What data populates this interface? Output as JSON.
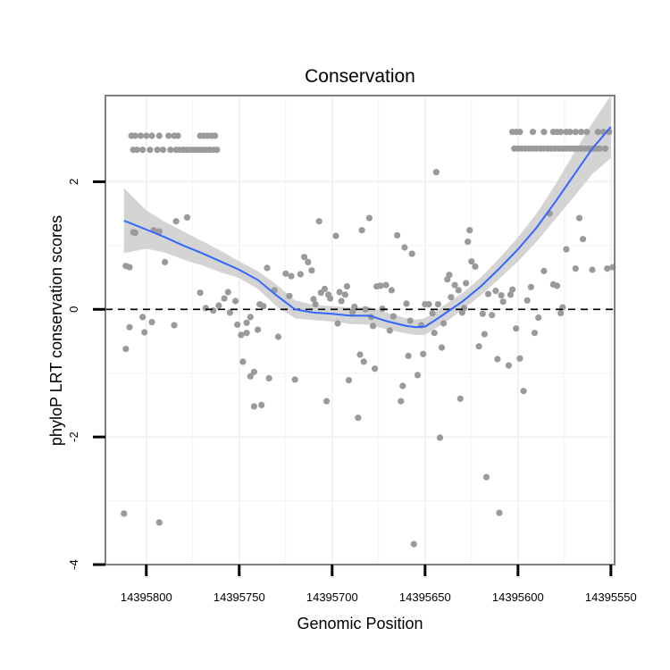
{
  "chart_data": {
    "type": "scatter",
    "title": "Conservation",
    "xlabel": "Genomic Position",
    "ylabel": "phyloP LRT conservation scores",
    "x_reversed": true,
    "xlim": [
      14395822,
      14395548
    ],
    "ylim": [
      -4.0,
      3.35
    ],
    "x_ticks": [
      14395800,
      14395750,
      14395700,
      14395650,
      14395600,
      14395550
    ],
    "x_tick_labels": [
      "14395800",
      "14395750",
      "14395700",
      "14395650",
      "14395600",
      "14395550"
    ],
    "y_ticks": [
      -4,
      -2,
      0,
      2
    ],
    "y_tick_labels": [
      "-4",
      "-2",
      "0",
      "2"
    ],
    "reference_line": {
      "y": 0,
      "style": "dashed"
    },
    "grid": true,
    "colors": {
      "points": "#9a9a9a",
      "smooth": "#3366ff",
      "ribbon": "#cccccc",
      "panel_border": "#808080",
      "grid": "#f2f2f2"
    },
    "points": [
      [
        14395808,
        2.72
      ],
      [
        14395806,
        2.72
      ],
      [
        14395803,
        2.72
      ],
      [
        14395800,
        2.72
      ],
      [
        14395797,
        2.72
      ],
      [
        14395793,
        2.72
      ],
      [
        14395788,
        2.72
      ],
      [
        14395785,
        2.72
      ],
      [
        14395783,
        2.72
      ],
      [
        14395771,
        2.72
      ],
      [
        14395769,
        2.72
      ],
      [
        14395767,
        2.72
      ],
      [
        14395765,
        2.72
      ],
      [
        14395763,
        2.72
      ],
      [
        14395807,
        2.5
      ],
      [
        14395805,
        2.5
      ],
      [
        14395802,
        2.5
      ],
      [
        14395798,
        2.5
      ],
      [
        14395794,
        2.5
      ],
      [
        14395791,
        2.5
      ],
      [
        14395787,
        2.5
      ],
      [
        14395784,
        2.5
      ],
      [
        14395782,
        2.5
      ],
      [
        14395780,
        2.5
      ],
      [
        14395778,
        2.5
      ],
      [
        14395776,
        2.5
      ],
      [
        14395774,
        2.5
      ],
      [
        14395772,
        2.5
      ],
      [
        14395770,
        2.5
      ],
      [
        14395768,
        2.5
      ],
      [
        14395766,
        2.5
      ],
      [
        14395764,
        2.5
      ],
      [
        14395762,
        2.5
      ],
      [
        14395603,
        2.78
      ],
      [
        14395601,
        2.78
      ],
      [
        14395599,
        2.78
      ],
      [
        14395592,
        2.78
      ],
      [
        14395586,
        2.78
      ],
      [
        14395581,
        2.78
      ],
      [
        14395579,
        2.78
      ],
      [
        14395577,
        2.78
      ],
      [
        14395574,
        2.78
      ],
      [
        14395572,
        2.78
      ],
      [
        14395569,
        2.78
      ],
      [
        14395566,
        2.78
      ],
      [
        14395563,
        2.78
      ],
      [
        14395557,
        2.78
      ],
      [
        14395554,
        2.78
      ],
      [
        14395551,
        2.78
      ],
      [
        14395602,
        2.52
      ],
      [
        14395600,
        2.52
      ],
      [
        14395598,
        2.52
      ],
      [
        14395596,
        2.52
      ],
      [
        14395594,
        2.52
      ],
      [
        14395592,
        2.52
      ],
      [
        14395590,
        2.52
      ],
      [
        14395588,
        2.52
      ],
      [
        14395586,
        2.52
      ],
      [
        14395584,
        2.52
      ],
      [
        14395582,
        2.52
      ],
      [
        14395580,
        2.52
      ],
      [
        14395578,
        2.52
      ],
      [
        14395576,
        2.52
      ],
      [
        14395574,
        2.52
      ],
      [
        14395572,
        2.52
      ],
      [
        14395570,
        2.52
      ],
      [
        14395568,
        2.52
      ],
      [
        14395566,
        2.52
      ],
      [
        14395564,
        2.52
      ],
      [
        14395562,
        2.52
      ],
      [
        14395560,
        2.52
      ],
      [
        14395558,
        2.52
      ],
      [
        14395556,
        2.52
      ],
      [
        14395553,
        2.52
      ],
      [
        14395811,
        0.68
      ],
      [
        14395809,
        0.66
      ],
      [
        14395807,
        1.21
      ],
      [
        14395806,
        1.2
      ],
      [
        14395802,
        -0.12
      ],
      [
        14395801,
        -0.36
      ],
      [
        14395797,
        -0.2
      ],
      [
        14395796,
        1.24
      ],
      [
        14395793,
        1.22
      ],
      [
        14395790,
        0.74
      ],
      [
        14395785,
        -0.25
      ],
      [
        14395784,
        1.38
      ],
      [
        14395778,
        1.44
      ],
      [
        14395771,
        0.26
      ],
      [
        14395768,
        0.02
      ],
      [
        14395764,
        -0.02
      ],
      [
        14395761,
        0.06
      ],
      [
        14395758,
        0.17
      ],
      [
        14395756,
        0.27
      ],
      [
        14395755,
        -0.05
      ],
      [
        14395752,
        0.13
      ],
      [
        14395751,
        -0.24
      ],
      [
        14395749,
        -0.4
      ],
      [
        14395748,
        -0.82
      ],
      [
        14395746,
        -0.37
      ],
      [
        14395746,
        -0.21
      ],
      [
        14395744,
        -0.12
      ],
      [
        14395744,
        -1.05
      ],
      [
        14395742,
        -0.98
      ],
      [
        14395740,
        -0.32
      ],
      [
        14395739,
        0.08
      ],
      [
        14395738,
        -1.5
      ],
      [
        14395737,
        0.05
      ],
      [
        14395735,
        0.65
      ],
      [
        14395734,
        -1.08
      ],
      [
        14395731,
        0.3
      ],
      [
        14395729,
        -0.43
      ],
      [
        14395725,
        0.56
      ],
      [
        14395723,
        0.21
      ],
      [
        14395722,
        0.52
      ],
      [
        14395720,
        -1.1
      ],
      [
        14395717,
        0.55
      ],
      [
        14395715,
        0.82
      ],
      [
        14395713,
        0.74
      ],
      [
        14395711,
        0.61
      ],
      [
        14395710,
        0.16
      ],
      [
        14395709,
        0.08
      ],
      [
        14395707,
        1.38
      ],
      [
        14395706,
        0.26
      ],
      [
        14395704,
        0.32
      ],
      [
        14395703,
        -1.44
      ],
      [
        14395702,
        0.23
      ],
      [
        14395701,
        0.17
      ],
      [
        14395698,
        1.15
      ],
      [
        14395697,
        -0.22
      ],
      [
        14395696,
        0.27
      ],
      [
        14395695,
        0.13
      ],
      [
        14395693,
        0.23
      ],
      [
        14395692,
        0.36
      ],
      [
        14395691,
        -1.11
      ],
      [
        14395689,
        -0.04
      ],
      [
        14395688,
        0.04
      ],
      [
        14395686,
        -1.7
      ],
      [
        14395685,
        -0.71
      ],
      [
        14395684,
        1.24
      ],
      [
        14395683,
        -0.82
      ],
      [
        14395682,
        0.0
      ],
      [
        14395680,
        1.43
      ],
      [
        14395679,
        -0.12
      ],
      [
        14395678,
        -0.26
      ],
      [
        14395677,
        -0.93
      ],
      [
        14395676,
        0.36
      ],
      [
        14395674,
        0.37
      ],
      [
        14395673,
        0.01
      ],
      [
        14395671,
        0.38
      ],
      [
        14395669,
        -0.33
      ],
      [
        14395668,
        0.3
      ],
      [
        14395667,
        -0.11
      ],
      [
        14395665,
        1.16
      ],
      [
        14395663,
        -1.44
      ],
      [
        14395662,
        -1.2
      ],
      [
        14395661,
        0.97
      ],
      [
        14395660,
        0.09
      ],
      [
        14395659,
        -0.73
      ],
      [
        14395658,
        -0.18
      ],
      [
        14395657,
        0.87
      ],
      [
        14395656,
        -3.68
      ],
      [
        14395654,
        -1.03
      ],
      [
        14395652,
        -0.25
      ],
      [
        14395651,
        -0.7
      ],
      [
        14395650,
        0.08
      ],
      [
        14395648,
        0.08
      ],
      [
        14395646,
        -0.06
      ],
      [
        14395645,
        -0.37
      ],
      [
        14395644,
        2.15
      ],
      [
        14395643,
        0.08
      ],
      [
        14395642,
        -2.01
      ],
      [
        14395641,
        -0.6
      ],
      [
        14395640,
        -0.22
      ],
      [
        14395638,
        0.47
      ],
      [
        14395637,
        0.54
      ],
      [
        14395636,
        0.19
      ],
      [
        14395634,
        0.38
      ],
      [
        14395632,
        0.3
      ],
      [
        14395631,
        -1.4
      ],
      [
        14395630,
        -0.05
      ],
      [
        14395629,
        0.02
      ],
      [
        14395628,
        0.41
      ],
      [
        14395627,
        1.06
      ],
      [
        14395626,
        1.24
      ],
      [
        14395625,
        0.75
      ],
      [
        14395623,
        0.67
      ],
      [
        14395621,
        -0.58
      ],
      [
        14395619,
        -0.07
      ],
      [
        14395618,
        -0.39
      ],
      [
        14395617,
        -2.63
      ],
      [
        14395616,
        0.24
      ],
      [
        14395614,
        -0.09
      ],
      [
        14395612,
        0.29
      ],
      [
        14395611,
        -0.78
      ],
      [
        14395610,
        -3.19
      ],
      [
        14395609,
        0.22
      ],
      [
        14395608,
        0.12
      ],
      [
        14395605,
        -0.88
      ],
      [
        14395604,
        0.23
      ],
      [
        14395603,
        0.31
      ],
      [
        14395601,
        -0.3
      ],
      [
        14395599,
        -0.77
      ],
      [
        14395597,
        -1.28
      ],
      [
        14395595,
        0.14
      ],
      [
        14395593,
        0.35
      ],
      [
        14395591,
        -0.37
      ],
      [
        14395589,
        -0.13
      ],
      [
        14395586,
        0.6
      ],
      [
        14395583,
        1.5
      ],
      [
        14395581,
        0.39
      ],
      [
        14395579,
        0.37
      ],
      [
        14395577,
        -0.06
      ],
      [
        14395576,
        0.03
      ],
      [
        14395574,
        0.94
      ],
      [
        14395569,
        0.64
      ],
      [
        14395567,
        1.43
      ],
      [
        14395565,
        1.1
      ],
      [
        14395560,
        0.62
      ],
      [
        14395552,
        0.64
      ],
      [
        14395549,
        0.66
      ],
      [
        14395812,
        -3.2
      ],
      [
        14395811,
        -0.62
      ],
      [
        14395809,
        -0.28
      ],
      [
        14395793,
        -3.34
      ],
      [
        14395742,
        -1.52
      ]
    ],
    "smooth": {
      "x": [
        14395812,
        14395800,
        14395790,
        14395780,
        14395770,
        14395760,
        14395750,
        14395740,
        14395730,
        14395720,
        14395710,
        14395700,
        14395690,
        14395680,
        14395670,
        14395660,
        14395655,
        14395650,
        14395645,
        14395640,
        14395630,
        14395620,
        14395610,
        14395600,
        14395590,
        14395580,
        14395570,
        14395560,
        14395550
      ],
      "y": [
        1.39,
        1.25,
        1.13,
        1.0,
        0.88,
        0.75,
        0.62,
        0.46,
        0.22,
        0.0,
        -0.05,
        -0.07,
        -0.1,
        -0.1,
        -0.19,
        -0.26,
        -0.28,
        -0.27,
        -0.18,
        -0.08,
        0.12,
        0.36,
        0.64,
        0.94,
        1.28,
        1.68,
        2.1,
        2.52,
        2.86
      ],
      "upper": [
        1.9,
        1.55,
        1.37,
        1.22,
        1.07,
        0.92,
        0.75,
        0.6,
        0.39,
        0.14,
        0.07,
        0.05,
        0.03,
        0.04,
        -0.06,
        -0.14,
        -0.16,
        -0.14,
        -0.05,
        0.06,
        0.25,
        0.5,
        0.8,
        1.13,
        1.5,
        1.95,
        2.44,
        2.92,
        3.35
      ],
      "lower": [
        0.88,
        0.95,
        0.89,
        0.78,
        0.69,
        0.58,
        0.49,
        0.32,
        0.05,
        -0.14,
        -0.17,
        -0.19,
        -0.23,
        -0.24,
        -0.32,
        -0.38,
        -0.4,
        -0.4,
        -0.31,
        -0.22,
        -0.01,
        0.22,
        0.48,
        0.75,
        1.06,
        1.41,
        1.76,
        2.12,
        2.37
      ]
    }
  }
}
